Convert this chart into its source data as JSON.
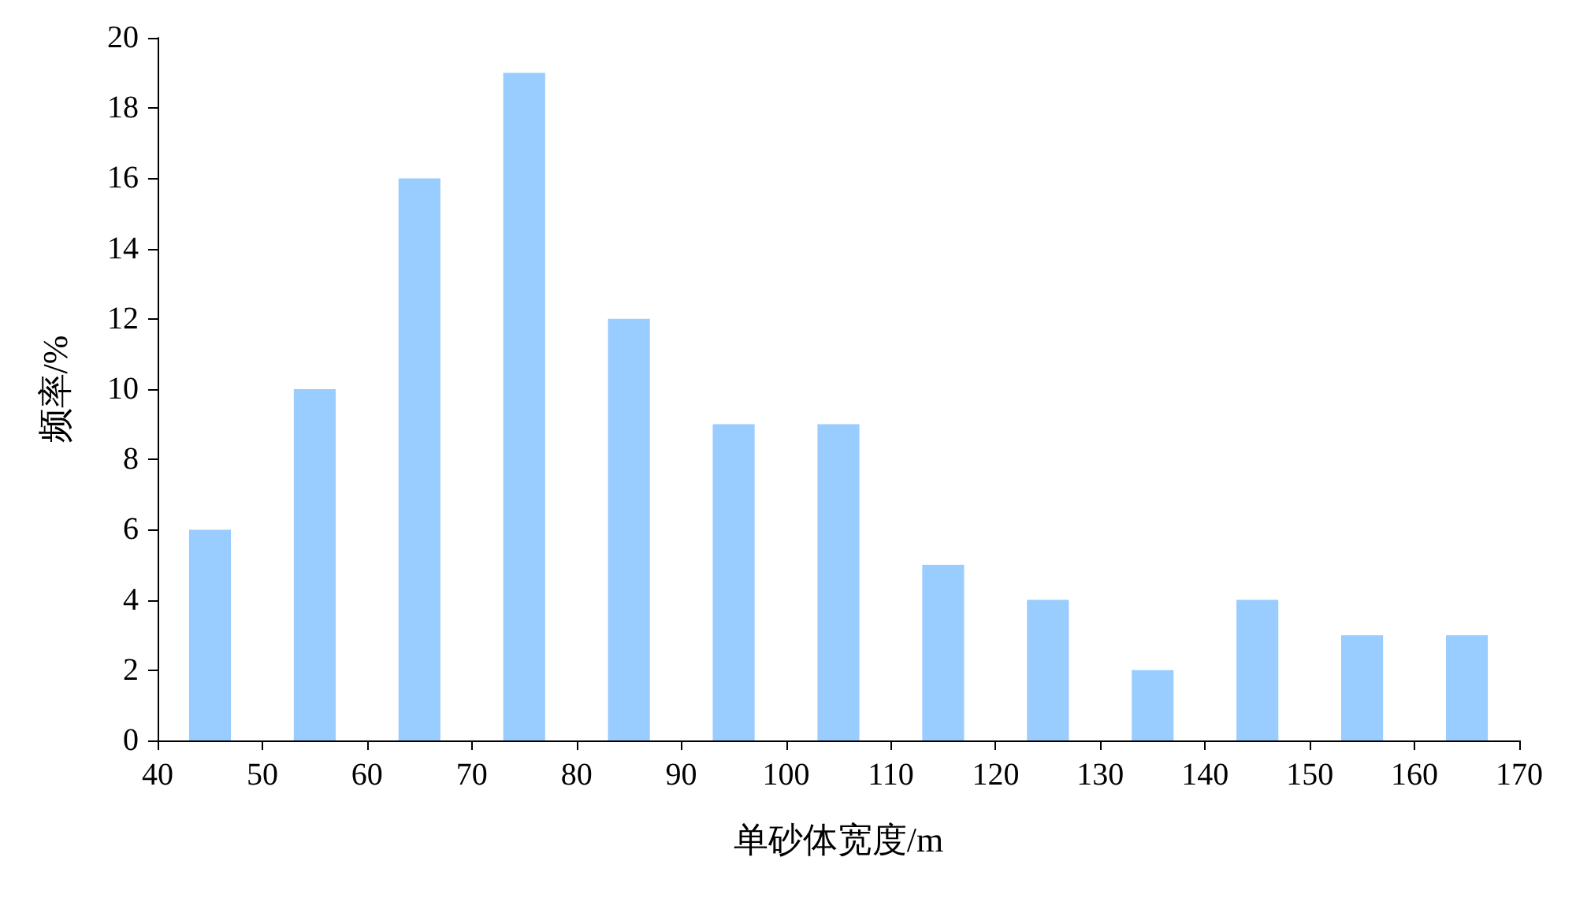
{
  "chart_data": {
    "type": "histogram",
    "xlabel": "单砂体宽度/m",
    "ylabel": "频率/%",
    "bins": [
      40,
      50,
      60,
      70,
      80,
      90,
      100,
      110,
      120,
      130,
      140,
      150,
      160,
      170
    ],
    "values": [
      6,
      10,
      16,
      19,
      12,
      9,
      9,
      5,
      4,
      2,
      4,
      3,
      3
    ],
    "color": "#99ccff",
    "xlim": [
      40,
      170
    ],
    "xticks": [
      40,
      50,
      60,
      70,
      80,
      90,
      100,
      110,
      120,
      130,
      140,
      150,
      160,
      170
    ],
    "ylim": [
      0,
      20
    ],
    "yticks": [
      0,
      2,
      4,
      6,
      8,
      10,
      12,
      14,
      16,
      18,
      20
    ]
  }
}
